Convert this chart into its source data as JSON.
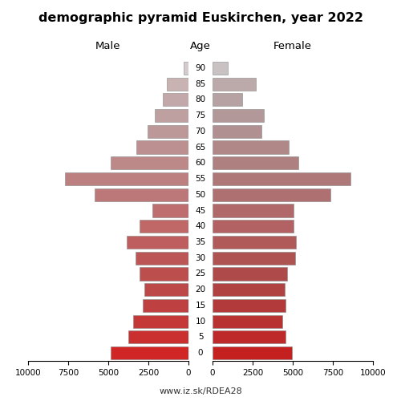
{
  "title": "demographic pyramid Euskirchen, year 2022",
  "label_male": "Male",
  "label_female": "Female",
  "label_age": "Age",
  "footer": "www.iz.sk/RDEA28",
  "age_labels": [
    "90",
    "85",
    "80",
    "75",
    "70",
    "65",
    "60",
    "55",
    "50",
    "45",
    "40",
    "35",
    "30",
    "25",
    "20",
    "15",
    "10",
    "5",
    "0"
  ],
  "male_values": [
    320,
    1350,
    1600,
    2100,
    2550,
    3250,
    4850,
    7700,
    5850,
    2250,
    3050,
    3850,
    3300,
    3050,
    2750,
    2850,
    3450,
    3750,
    4850
  ],
  "female_values": [
    950,
    2700,
    1850,
    3200,
    3050,
    4750,
    5350,
    8600,
    7350,
    5050,
    5050,
    5200,
    5150,
    4650,
    4500,
    4550,
    4350,
    4550,
    4950
  ],
  "male_colors": [
    "#d4cccc",
    "#c8b2b2",
    "#c2a8a8",
    "#bea0a0",
    "#bc9898",
    "#bc9090",
    "#bc8888",
    "#bc8080",
    "#bc7878",
    "#be6e6e",
    "#c06868",
    "#be5e5e",
    "#bc5656",
    "#bc4e4e",
    "#bc4848",
    "#be4040",
    "#c43838",
    "#ca3030",
    "#d02626"
  ],
  "female_colors": [
    "#c8c2c2",
    "#bcaaaa",
    "#b6a2a2",
    "#b29898",
    "#b09090",
    "#b08888",
    "#ae8080",
    "#ae7878",
    "#ae7070",
    "#b06868",
    "#b26262",
    "#b05a5a",
    "#ae5252",
    "#ae4a4a",
    "#b04242",
    "#b23a3a",
    "#b83232",
    "#be2a2a",
    "#c42020"
  ],
  "xlim": 10000,
  "xticks_left": [
    10000,
    7500,
    5000,
    2500,
    0
  ],
  "xticks_right": [
    0,
    2500,
    5000,
    7500,
    10000
  ],
  "bar_height": 0.82
}
